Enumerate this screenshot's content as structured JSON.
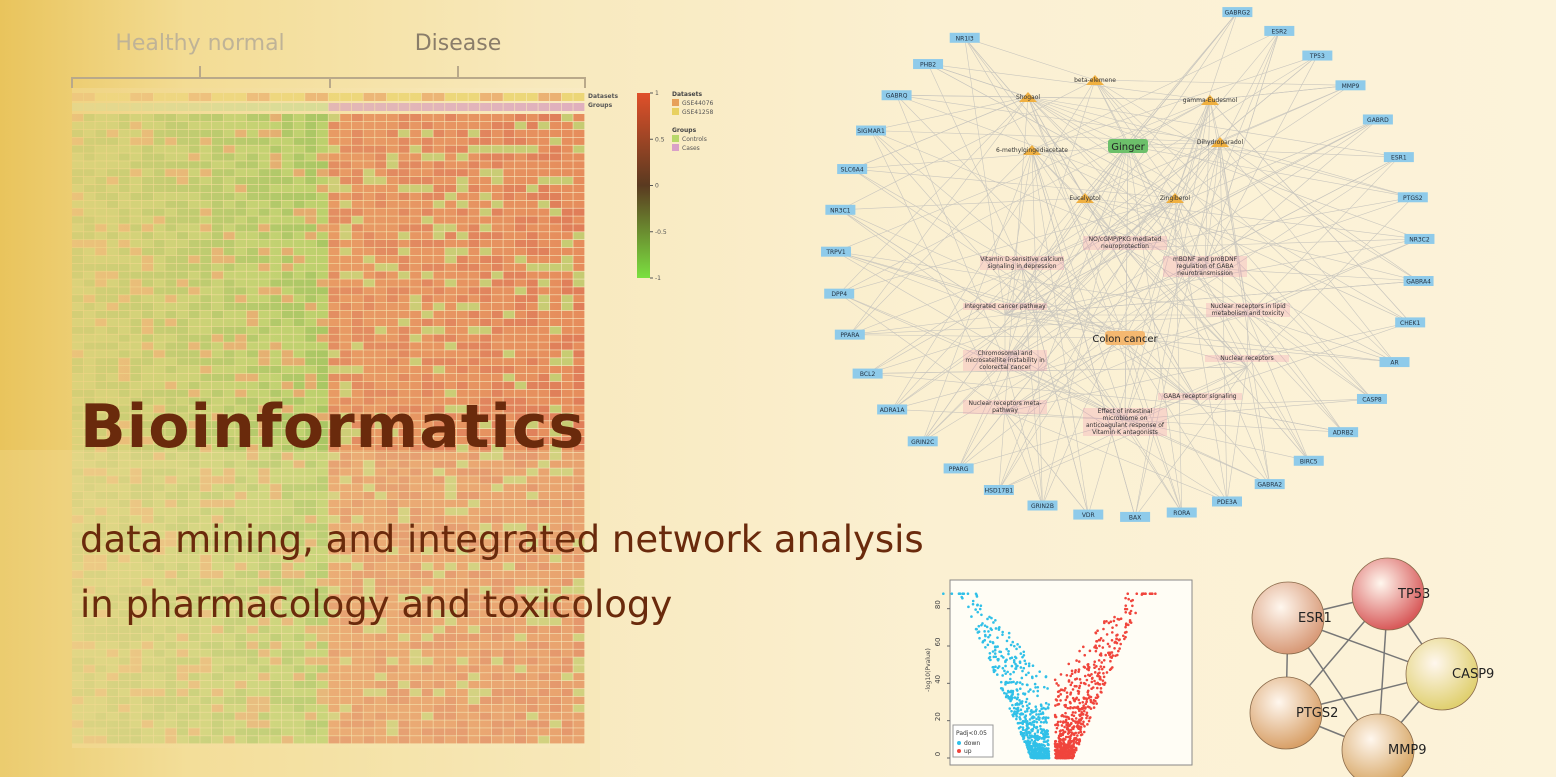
{
  "banner": {
    "title": "Bioinformatics",
    "subtitle_lines": [
      "data mining, and integrated network analysis",
      "in pharmacology and toxicology"
    ]
  },
  "heatmap": {
    "group_labels": [
      "Healthy normal",
      "Disease"
    ],
    "row_labels": [
      "Datasets",
      "Groups"
    ],
    "legend": {
      "datasets_title": "Datasets",
      "datasets": [
        "GSE44076",
        "GSE41258"
      ],
      "groups_title": "Groups",
      "groups": [
        "Controls",
        "Cases"
      ]
    },
    "colorbar_ticks": [
      1,
      0.5,
      0,
      -0.5,
      -1
    ]
  },
  "network": {
    "ring_nodes": [
      "NR1I3",
      "PHB2",
      "GABRQ",
      "SIGMAR1",
      "SLC6A4",
      "NR3C1",
      "TRPV1",
      "DPP4",
      "PPARA",
      "BCL2",
      "ADRA1A",
      "GRIN2C",
      "PPARG",
      "HSD17B1",
      "GRIN2B",
      "VDR",
      "BAX",
      "RORA",
      "PDE3A",
      "GABRA2",
      "BIRC5",
      "ADRB2",
      "CASP8",
      "AR",
      "CHEK1",
      "GABRA4",
      "NR3C2",
      "PTGS2",
      "ESR1",
      "GABRD",
      "MMP9",
      "TP53",
      "ESR2",
      "GABRG2"
    ],
    "compounds": [
      "beta-elemene",
      "Shogaol",
      "gamma-Eudesmol",
      "6-methylgingediacetate",
      "Dihydroparadol",
      "Eucalyptol",
      "Zingiberol"
    ],
    "hubs": [
      "Ginger",
      "Colon cancer"
    ],
    "pathways": [
      "NO/cGMP/PKG mediated neuroprotection",
      "Vitamin D-sensitive calcium signaling in depression",
      "mBDNF and proBDNF regulation of GABA neurotransmission",
      "Integrated cancer pathway",
      "Nuclear receptors in lipid metabolism and toxicity",
      "Chromosomal and microsatellite instability in colorectal cancer",
      "Nuclear receptors",
      "Nuclear receptors meta-pathway",
      "Effect of intestinal microbiome on anticoagulant response of Vitamin K antagonists",
      "GABA receptor signaling"
    ]
  },
  "volcano": {
    "ylabel": "-log10(Pvalue)",
    "yticks": [
      0,
      20,
      40,
      60,
      80
    ],
    "legend_title": "Padj<0.05",
    "legend": [
      "down",
      "up"
    ]
  },
  "string_network": {
    "nodes": [
      "ESR1",
      "TP53",
      "CASP9",
      "PTGS2",
      "MMP9"
    ]
  }
}
